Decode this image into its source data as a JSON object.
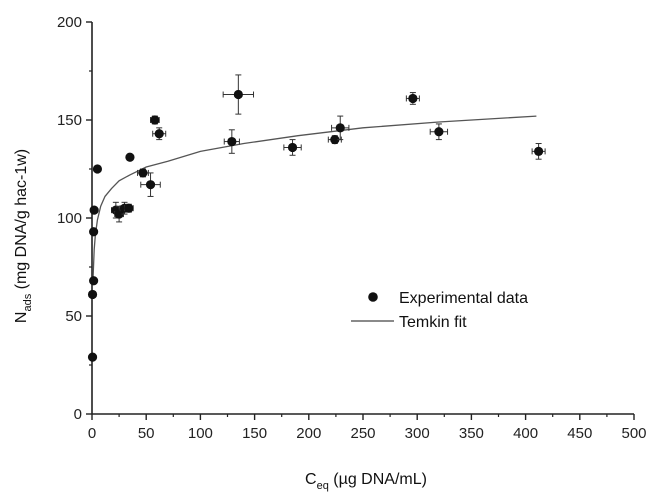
{
  "chart_data": {
    "type": "scatter",
    "xlabel_main": "C",
    "xlabel_sub": "eq",
    "xlabel_rest": " (µg DNA/mL)",
    "ylabel_main": "N",
    "ylabel_sub": "ads",
    "ylabel_rest": " (mg DNA/g hac-1w)",
    "xlim": [
      0,
      500
    ],
    "ylim": [
      0,
      200
    ],
    "xticks": [
      0,
      50,
      100,
      150,
      200,
      250,
      300,
      350,
      400,
      450,
      500
    ],
    "yticks": [
      0,
      50,
      100,
      150,
      200
    ],
    "grid": false,
    "legend_position": "center-right",
    "legend": {
      "experimental": "Experimental data",
      "fit": "Temkin fit"
    },
    "series": [
      {
        "name": "Experimental data",
        "kind": "points",
        "points": [
          {
            "x": 0.5,
            "y": 29,
            "xerr": 0,
            "yerr": 0
          },
          {
            "x": 0.5,
            "y": 61,
            "xerr": 0,
            "yerr": 0
          },
          {
            "x": 1.5,
            "y": 68,
            "xerr": 0,
            "yerr": 0
          },
          {
            "x": 1.5,
            "y": 93,
            "xerr": 0,
            "yerr": 0
          },
          {
            "x": 2,
            "y": 104,
            "xerr": 0,
            "yerr": 0
          },
          {
            "x": 5,
            "y": 125,
            "xerr": 0,
            "yerr": 0
          },
          {
            "x": 22,
            "y": 104,
            "xerr": 4,
            "yerr": 4
          },
          {
            "x": 25,
            "y": 102,
            "xerr": 4,
            "yerr": 4
          },
          {
            "x": 30,
            "y": 105,
            "xerr": 4,
            "yerr": 3
          },
          {
            "x": 34,
            "y": 105,
            "xerr": 4,
            "yerr": 2
          },
          {
            "x": 35,
            "y": 131,
            "xerr": 0,
            "yerr": 0
          },
          {
            "x": 47,
            "y": 123,
            "xerr": 5,
            "yerr": 2
          },
          {
            "x": 54,
            "y": 117,
            "xerr": 9,
            "yerr": 6
          },
          {
            "x": 58,
            "y": 150,
            "xerr": 4,
            "yerr": 2
          },
          {
            "x": 62,
            "y": 143,
            "xerr": 6,
            "yerr": 3
          },
          {
            "x": 129,
            "y": 139,
            "xerr": 7,
            "yerr": 6
          },
          {
            "x": 135,
            "y": 163,
            "xerr": 14,
            "yerr": 10
          },
          {
            "x": 185,
            "y": 136,
            "xerr": 8,
            "yerr": 4
          },
          {
            "x": 224,
            "y": 140,
            "xerr": 6,
            "yerr": 2
          },
          {
            "x": 229,
            "y": 146,
            "xerr": 8,
            "yerr": 6
          },
          {
            "x": 296,
            "y": 161,
            "xerr": 6,
            "yerr": 3
          },
          {
            "x": 320,
            "y": 144,
            "xerr": 8,
            "yerr": 4
          },
          {
            "x": 412,
            "y": 134,
            "xerr": 6,
            "yerr": 4
          }
        ]
      },
      {
        "name": "Temkin fit",
        "kind": "line",
        "x": [
          1,
          2,
          3,
          5,
          8,
          12,
          18,
          25,
          35,
          50,
          70,
          100,
          140,
          190,
          250,
          320,
          410
        ],
        "y": [
          70,
          84,
          91,
          99,
          106,
          111,
          115,
          119,
          122,
          126,
          129,
          134,
          138,
          142,
          146,
          149,
          152
        ]
      }
    ]
  }
}
